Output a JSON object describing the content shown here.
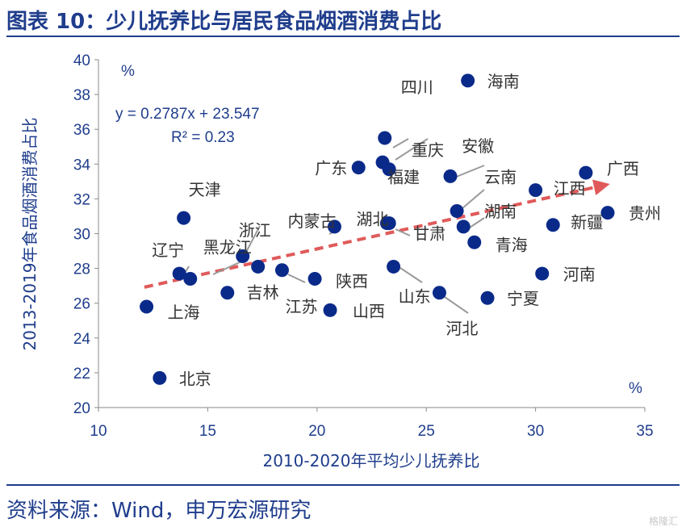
{
  "title": "图表 10：少儿抚养比与居民食品烟酒消费占比",
  "source": "资料来源：Wind，申万宏源研究",
  "watermark": "格隆汇",
  "chart_data": {
    "type": "scatter",
    "xlabel": "2010-2020年平均少儿抚养比",
    "ylabel": "2013-2019年食品烟酒消费占比",
    "xunit": "%",
    "yunit": "%",
    "xlim": [
      10,
      35
    ],
    "ylim": [
      20,
      40
    ],
    "xticks": [
      10,
      15,
      20,
      25,
      30,
      35
    ],
    "yticks": [
      20,
      22,
      24,
      26,
      28,
      30,
      32,
      34,
      36,
      38,
      40
    ],
    "grid": false,
    "trendline": {
      "slope": 0.2787,
      "intercept": 23.547,
      "x_range": [
        12.1,
        33.4
      ],
      "color": "#e05a5a",
      "style": "dashed-arrow"
    },
    "equation": "y = 0.2787x + 23.547",
    "r2": "R² = 0.23",
    "marker_color": "#0a2a8a",
    "points": [
      {
        "name": "海南",
        "x": 26.9,
        "y": 38.8
      },
      {
        "name": "四川",
        "x": 23.1,
        "y": 35.5
      },
      {
        "name": "重庆",
        "x": 23.0,
        "y": 34.1
      },
      {
        "name": "安徽",
        "x": 23.3,
        "y": 33.7
      },
      {
        "name": "福建",
        "x": 26.1,
        "y": 33.3
      },
      {
        "name": "广东",
        "x": 21.9,
        "y": 33.8
      },
      {
        "name": "云南",
        "x": 26.4,
        "y": 31.3
      },
      {
        "name": "江西",
        "x": 30.0,
        "y": 32.5
      },
      {
        "name": "广西",
        "x": 32.3,
        "y": 33.5
      },
      {
        "name": "贵州",
        "x": 33.3,
        "y": 31.2
      },
      {
        "name": "新疆",
        "x": 30.8,
        "y": 30.5
      },
      {
        "name": "湖南",
        "x": 26.7,
        "y": 30.4
      },
      {
        "name": "青海",
        "x": 27.2,
        "y": 29.5
      },
      {
        "name": "甘肃",
        "x": 23.3,
        "y": 30.6
      },
      {
        "name": "湖北",
        "x": 23.2,
        "y": 30.6
      },
      {
        "name": "内蒙古",
        "x": 20.8,
        "y": 30.4
      },
      {
        "name": "天津",
        "x": 13.9,
        "y": 30.9
      },
      {
        "name": "浙江",
        "x": 16.6,
        "y": 28.7
      },
      {
        "name": "黑龙江",
        "x": 14.2,
        "y": 27.4
      },
      {
        "name": "辽宁",
        "x": 13.7,
        "y": 27.7
      },
      {
        "name": "吉林",
        "x": 17.3,
        "y": 28.1
      },
      {
        "name": "江苏",
        "x": 18.4,
        "y": 27.9
      },
      {
        "name": "陕西",
        "x": 19.9,
        "y": 27.4
      },
      {
        "name": "山东",
        "x": 23.5,
        "y": 28.1
      },
      {
        "name": "河南",
        "x": 30.3,
        "y": 27.7
      },
      {
        "name": "上海",
        "x": 12.2,
        "y": 25.8
      },
      {
        "name": "山西",
        "x": 20.6,
        "y": 25.6
      },
      {
        "name": "河北",
        "x": 25.6,
        "y": 26.6
      },
      {
        "name": "宁夏",
        "x": 27.8,
        "y": 26.3
      },
      {
        "name": "",
        "x": 15.9,
        "y": 26.6
      },
      {
        "name": "北京",
        "x": 12.8,
        "y": 21.7
      }
    ]
  }
}
